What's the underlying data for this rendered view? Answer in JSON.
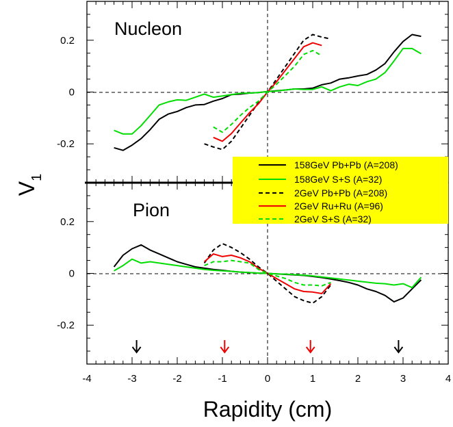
{
  "chart_data": {
    "type": "line",
    "xlabel": "Rapidity (cm)",
    "ylabel": "V",
    "ylabel_sub": "1",
    "xlim": [
      -4,
      4
    ],
    "x_ticks": [
      -4,
      -3,
      -2,
      -1,
      0,
      1,
      2,
      3,
      4
    ],
    "x_tick_labels": [
      "-4",
      "-3",
      "-2",
      "-1",
      "0",
      "1",
      "2",
      "3",
      "4"
    ],
    "colors": {
      "black": "#000000",
      "green": "#00dd00",
      "red": "#ee0000",
      "legend_bg": "#ffff00"
    },
    "legend": {
      "placement": "right, spanning panel boundary",
      "entries": [
        {
          "label": "158GeV Pb+Pb (A=208)",
          "color": "#000000",
          "dash": "solid"
        },
        {
          "label": "158GeV S+S (A=32)",
          "color": "#00dd00",
          "dash": "solid"
        },
        {
          "label": "2GeV Pb+Pb (A=208)",
          "color": "#000000",
          "dash": "dashed"
        },
        {
          "label": "2GeV Ru+Ru (A=96)",
          "color": "#ee0000",
          "dash": "solid"
        },
        {
          "label": "2GeV S+S (A=32)",
          "color": "#00dd00",
          "dash": "dashed"
        }
      ]
    },
    "arrows": [
      {
        "x": -2.9,
        "color": "#000000"
      },
      {
        "x": -0.95,
        "color": "#ee0000"
      },
      {
        "x": 0.95,
        "color": "#ee0000"
      },
      {
        "x": 2.9,
        "color": "#000000"
      }
    ],
    "panels": [
      {
        "label": "Nucleon",
        "ylim": [
          -0.35,
          0.35
        ],
        "y_ticks": [
          -0.2,
          0,
          0.2
        ],
        "y_tick_labels": [
          "-0.2",
          "0",
          "0.2"
        ],
        "series": [
          {
            "label": "158GeV Pb+Pb (A=208)",
            "color": "#000000",
            "dash": "solid",
            "x": [
              -3.4,
              -3.2,
              -3.0,
              -2.8,
              -2.6,
              -2.4,
              -2.2,
              -2.0,
              -1.8,
              -1.6,
              -1.4,
              -1.2,
              -1.0,
              -0.8,
              -0.6,
              -0.4,
              -0.2,
              0.0,
              0.2,
              0.4,
              0.6,
              0.8,
              1.0,
              1.2,
              1.4,
              1.6,
              1.8,
              2.0,
              2.2,
              2.4,
              2.6,
              2.8,
              3.0,
              3.2,
              3.4
            ],
            "y": [
              -0.215,
              -0.225,
              -0.205,
              -0.18,
              -0.145,
              -0.105,
              -0.085,
              -0.075,
              -0.06,
              -0.05,
              -0.048,
              -0.035,
              -0.025,
              -0.01,
              -0.008,
              -0.004,
              -0.002,
              0.002,
              0.005,
              0.008,
              0.012,
              0.012,
              0.015,
              0.028,
              0.035,
              0.05,
              0.055,
              0.062,
              0.068,
              0.085,
              0.11,
              0.155,
              0.195,
              0.222,
              0.215
            ]
          },
          {
            "label": "158GeV S+S (A=32)",
            "color": "#00dd00",
            "dash": "solid",
            "x": [
              -3.4,
              -3.2,
              -3.0,
              -2.8,
              -2.6,
              -2.4,
              -2.2,
              -2.0,
              -1.8,
              -1.6,
              -1.4,
              -1.2,
              -1.0,
              -0.8,
              -0.6,
              -0.4,
              -0.2,
              0.0,
              0.2,
              0.4,
              0.6,
              0.8,
              1.0,
              1.2,
              1.4,
              1.6,
              1.8,
              2.0,
              2.2,
              2.4,
              2.6,
              2.8,
              3.0,
              3.2,
              3.4
            ],
            "y": [
              -0.148,
              -0.162,
              -0.162,
              -0.13,
              -0.09,
              -0.05,
              -0.038,
              -0.03,
              -0.032,
              -0.02,
              -0.008,
              -0.02,
              -0.015,
              -0.01,
              -0.005,
              -0.004,
              -0.002,
              0.002,
              0.004,
              0.008,
              0.012,
              0.01,
              0.01,
              0.02,
              0.005,
              0.02,
              0.03,
              0.025,
              0.04,
              0.05,
              0.075,
              0.12,
              0.168,
              0.168,
              0.148
            ]
          },
          {
            "label": "2GeV Pb+Pb (A=208)",
            "color": "#000000",
            "dash": "dashed",
            "x": [
              -1.4,
              -1.2,
              -1.0,
              -0.8,
              -0.6,
              -0.4,
              -0.2,
              0.0,
              0.2,
              0.4,
              0.6,
              0.8,
              1.0,
              1.2,
              1.4
            ],
            "y": [
              -0.2,
              -0.212,
              -0.222,
              -0.19,
              -0.14,
              -0.09,
              -0.04,
              0.0,
              0.05,
              0.1,
              0.15,
              0.2,
              0.222,
              0.212,
              0.205
            ]
          },
          {
            "label": "2GeV Ru+Ru (A=96)",
            "color": "#ee0000",
            "dash": "solid",
            "x": [
              -1.2,
              -1.0,
              -0.8,
              -0.6,
              -0.4,
              -0.2,
              0.0,
              0.2,
              0.4,
              0.6,
              0.8,
              1.0,
              1.2
            ],
            "y": [
              -0.175,
              -0.19,
              -0.16,
              -0.12,
              -0.08,
              -0.045,
              0.0,
              0.04,
              0.085,
              0.13,
              0.175,
              0.19,
              0.18
            ]
          },
          {
            "label": "2GeV S+S (A=32)",
            "color": "#00dd00",
            "dash": "dashed",
            "x": [
              -1.2,
              -1.0,
              -0.8,
              -0.6,
              -0.4,
              -0.2,
              0.0,
              0.2,
              0.4,
              0.6,
              0.8,
              1.0,
              1.2
            ],
            "y": [
              -0.135,
              -0.155,
              -0.125,
              -0.09,
              -0.06,
              -0.035,
              0.0,
              0.03,
              0.065,
              0.1,
              0.145,
              0.16,
              0.14
            ]
          }
        ]
      },
      {
        "label": "Pion",
        "ylim": [
          -0.35,
          0.35
        ],
        "y_ticks": [
          -0.2,
          0,
          0.2
        ],
        "y_tick_labels": [
          "-0.2",
          "0",
          "0.2"
        ],
        "series": [
          {
            "label": "158GeV Pb+Pb (A=208)",
            "color": "#000000",
            "dash": "solid",
            "x": [
              -3.4,
              -3.2,
              -3.0,
              -2.8,
              -2.6,
              -2.4,
              -2.2,
              -2.0,
              -1.8,
              -1.6,
              -1.4,
              -1.2,
              -1.0,
              -0.8,
              -0.6,
              -0.4,
              -0.2,
              0.0,
              0.2,
              0.4,
              0.6,
              0.8,
              1.0,
              1.2,
              1.4,
              1.6,
              1.8,
              2.0,
              2.2,
              2.4,
              2.6,
              2.8,
              3.0,
              3.2,
              3.4
            ],
            "y": [
              0.025,
              0.07,
              0.095,
              0.11,
              0.09,
              0.075,
              0.06,
              0.045,
              0.035,
              0.025,
              0.02,
              0.015,
              0.012,
              0.008,
              0.005,
              0.003,
              0.001,
              0.0,
              -0.002,
              -0.004,
              -0.006,
              -0.008,
              -0.012,
              -0.016,
              -0.022,
              -0.028,
              -0.035,
              -0.045,
              -0.06,
              -0.07,
              -0.085,
              -0.11,
              -0.095,
              -0.06,
              -0.025
            ]
          },
          {
            "label": "158GeV S+S (A=32)",
            "color": "#00dd00",
            "dash": "solid",
            "x": [
              -3.4,
              -3.2,
              -3.0,
              -2.8,
              -2.6,
              -2.4,
              -2.2,
              -2.0,
              -1.8,
              -1.6,
              -1.4,
              -1.2,
              -1.0,
              -0.8,
              -0.6,
              -0.4,
              -0.2,
              0.0,
              0.2,
              0.4,
              0.6,
              0.8,
              1.0,
              1.2,
              1.4,
              1.6,
              1.8,
              2.0,
              2.2,
              2.4,
              2.6,
              2.8,
              3.0,
              3.2,
              3.4
            ],
            "y": [
              0.01,
              0.03,
              0.055,
              0.04,
              0.045,
              0.04,
              0.035,
              0.03,
              0.025,
              0.02,
              0.015,
              0.012,
              0.01,
              0.008,
              0.005,
              0.003,
              0.001,
              0.0,
              -0.002,
              -0.003,
              -0.005,
              -0.007,
              -0.01,
              -0.014,
              -0.018,
              -0.022,
              -0.026,
              -0.03,
              -0.034,
              -0.038,
              -0.04,
              -0.045,
              -0.04,
              -0.055,
              -0.015
            ]
          },
          {
            "label": "2GeV Pb+Pb (A=208)",
            "color": "#000000",
            "dash": "dashed",
            "x": [
              -1.4,
              -1.2,
              -1.0,
              -0.8,
              -0.6,
              -0.4,
              -0.2,
              0.0,
              0.2,
              0.4,
              0.6,
              0.8,
              1.0,
              1.2,
              1.4
            ],
            "y": [
              0.04,
              0.09,
              0.115,
              0.1,
              0.08,
              0.055,
              0.025,
              0.0,
              -0.03,
              -0.06,
              -0.09,
              -0.105,
              -0.115,
              -0.09,
              -0.045
            ]
          },
          {
            "label": "2GeV Ru+Ru (A=96)",
            "color": "#ee0000",
            "dash": "solid",
            "x": [
              -1.4,
              -1.2,
              -1.0,
              -0.8,
              -0.6,
              -0.4,
              -0.2,
              0.0,
              0.2,
              0.4,
              0.6,
              0.8,
              1.0,
              1.2,
              1.4
            ],
            "y": [
              0.045,
              0.075,
              0.065,
              0.07,
              0.06,
              0.045,
              0.02,
              0.0,
              -0.02,
              -0.04,
              -0.06,
              -0.07,
              -0.072,
              -0.078,
              -0.04
            ]
          },
          {
            "label": "2GeV S+S (A=32)",
            "color": "#00dd00",
            "dash": "dashed",
            "x": [
              -1.4,
              -1.2,
              -1.0,
              -0.8,
              -0.6,
              -0.4,
              -0.2,
              0.0,
              0.2,
              0.4,
              0.6,
              0.8,
              1.0,
              1.2,
              1.4
            ],
            "y": [
              0.03,
              0.045,
              0.045,
              0.05,
              0.045,
              0.04,
              0.015,
              0.0,
              -0.01,
              -0.02,
              -0.035,
              -0.045,
              -0.045,
              -0.048,
              -0.035
            ]
          }
        ]
      }
    ]
  }
}
